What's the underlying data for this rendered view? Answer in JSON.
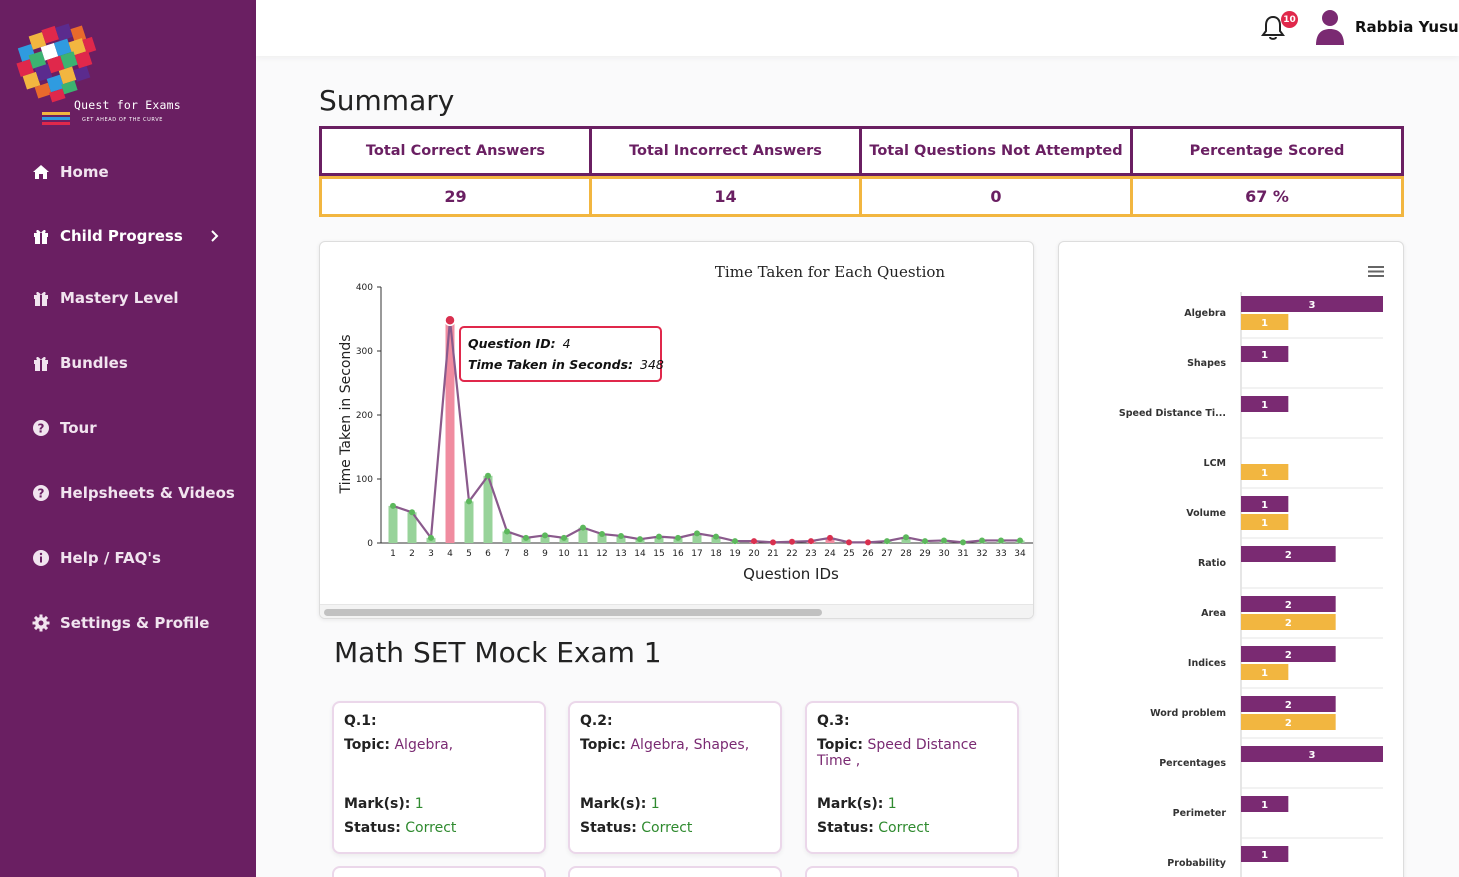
{
  "brand": {
    "name": "Quest for Exams",
    "tagline": "GET AHEAD OF THE CURVE"
  },
  "sidebar": {
    "items": [
      {
        "label": "Home",
        "icon": "home-icon"
      },
      {
        "label": "Child Progress",
        "icon": "gift-icon",
        "active": true
      },
      {
        "label": "Mastery Level",
        "icon": "gift-icon"
      },
      {
        "label": "Bundles",
        "icon": "gift-icon"
      },
      {
        "label": "Tour",
        "icon": "question-circle-icon"
      },
      {
        "label": "Helpsheets & Videos",
        "icon": "question-circle-icon"
      },
      {
        "label": "Help / FAQ's",
        "icon": "info-circle-icon"
      },
      {
        "label": "Settings & Profile",
        "icon": "gear-icon"
      }
    ]
  },
  "header": {
    "notification_count": "10",
    "user_name": "Rabbia Yusuf"
  },
  "summary": {
    "title": "Summary",
    "headers": [
      "Total Correct Answers",
      "Total Incorrect Answers",
      "Total Questions Not Attempted",
      "Percentage Scored"
    ],
    "values": [
      "29",
      "14",
      "0",
      "67 %"
    ]
  },
  "chart_data": [
    {
      "type": "bar",
      "title": "Time Taken for Each Question",
      "xlabel": "Question IDs",
      "ylabel": "Time Taken in Seconds",
      "ylim": [
        0,
        400
      ],
      "yticks": [
        "0",
        "100",
        "200",
        "300",
        "400"
      ],
      "categories": [
        "1",
        "2",
        "3",
        "4",
        "5",
        "6",
        "7",
        "8",
        "9",
        "10",
        "11",
        "12",
        "13",
        "14",
        "15",
        "16",
        "17",
        "18",
        "19",
        "20",
        "21",
        "22",
        "23",
        "24",
        "25",
        "26",
        "27",
        "28",
        "29",
        "30",
        "31",
        "32",
        "33",
        "34"
      ],
      "values": [
        58,
        48,
        8,
        348,
        65,
        105,
        18,
        8,
        12,
        8,
        24,
        14,
        11,
        6,
        10,
        8,
        15,
        10,
        3,
        3,
        1,
        2,
        3,
        8,
        1,
        1,
        3,
        9,
        3,
        4,
        1,
        4,
        4,
        4
      ],
      "status": [
        "correct",
        "correct",
        "correct",
        "incorrect",
        "correct",
        "correct",
        "correct",
        "correct",
        "correct",
        "correct",
        "correct",
        "correct",
        "correct",
        "correct",
        "correct",
        "correct",
        "correct",
        "correct",
        "correct",
        "incorrect",
        "incorrect",
        "incorrect",
        "incorrect",
        "incorrect",
        "incorrect",
        "incorrect",
        "correct",
        "correct",
        "correct",
        "correct",
        "correct",
        "correct",
        "correct",
        "correct"
      ],
      "colors": {
        "correct": "#98d39a",
        "incorrect": "#f08ca0",
        "line": "#8a5a8c",
        "correct_point": "#5cb85c",
        "incorrect_point": "#d9304f"
      },
      "tooltip": {
        "id_label": "Question ID:",
        "id_value": "4",
        "time_label": "Time Taken in Seconds:",
        "time_value": "348"
      }
    },
    {
      "type": "bar",
      "orientation": "horizontal",
      "categories": [
        "Algebra",
        "Shapes",
        "Speed Distance Ti...",
        "LCM",
        "Volume",
        "Ratio",
        "Area",
        "Indices",
        "Word problem",
        "Percentages",
        "Perimeter",
        "Probability"
      ],
      "series": [
        {
          "values": [
            3,
            1,
            1,
            0,
            1,
            2,
            2,
            2,
            2,
            3,
            1,
            1
          ],
          "color": "#7a2a72"
        },
        {
          "values": [
            1,
            0,
            0,
            1,
            1,
            0,
            2,
            1,
            2,
            0,
            0,
            0
          ],
          "color": "#f2b640"
        }
      ],
      "xlim": [
        0,
        3
      ]
    }
  ],
  "exam": {
    "title": "Math SET Mock Exam 1",
    "labels": {
      "topic": "Topic:",
      "marks": "Mark(s):",
      "status": "Status:"
    },
    "questions": [
      {
        "id": "Q.1:",
        "topics": [
          "Algebra,"
        ],
        "marks": "1",
        "status": "Correct"
      },
      {
        "id": "Q.2:",
        "topics": [
          "Algebra,",
          "Shapes,"
        ],
        "marks": "1",
        "status": "Correct"
      },
      {
        "id": "Q.3:",
        "topics": [
          "Speed Distance Time ,"
        ],
        "marks": "1",
        "status": "Correct"
      }
    ]
  }
}
